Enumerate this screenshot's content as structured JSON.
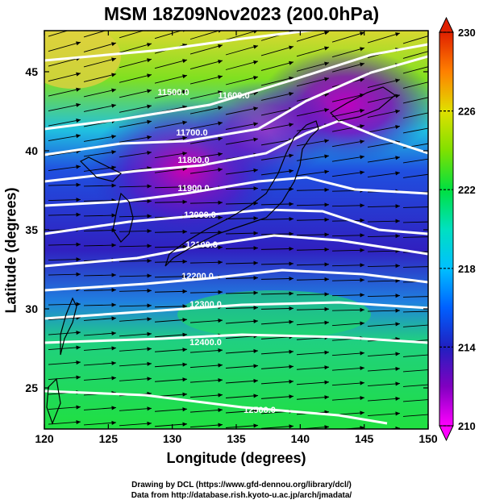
{
  "title": "MSM 18Z09Nov2023 (200.0hPa)",
  "xlabel": "Longitude (degrees)",
  "ylabel": "Latitude  (degrees)",
  "x_ticks": [
    "120",
    "125",
    "130",
    "135",
    "140",
    "145",
    "150"
  ],
  "y_ticks": [
    "25",
    "30",
    "35",
    "40",
    "45"
  ],
  "colorbar": {
    "ticks": [
      "230",
      "226",
      "222",
      "218",
      "214",
      "210"
    ],
    "min": 210,
    "max": 230
  },
  "contour_labels": [
    "11500.0",
    "11600.0",
    "11700.0",
    "11800.0",
    "11900.0",
    "12000.0",
    "12100.0",
    "12200.0",
    "12300.0",
    "12400.0",
    "12500.0"
  ],
  "credits": [
    "Drawing by DCL (https://www.gfd-dennou.org/library/dcl/)",
    "Data from http://database.rish.kyoto-u.ac.jp/arch/jmadata/"
  ],
  "chart_data": {
    "type": "heatmap",
    "title": "MSM 18Z09Nov2023 (200.0hPa)",
    "xlabel": "Longitude (degrees)",
    "ylabel": "Latitude  (degrees)",
    "xlim": [
      120,
      150
    ],
    "ylim": [
      22.4,
      47.6
    ],
    "shading_range": [
      210,
      230
    ],
    "geopotential_height_contours": [
      11500,
      11600,
      11700,
      11800,
      11900,
      12000,
      12100,
      12200,
      12300,
      12400,
      12500
    ],
    "vectors": "wind vectors (westerly, southwesterly in north)",
    "grid": true
  }
}
